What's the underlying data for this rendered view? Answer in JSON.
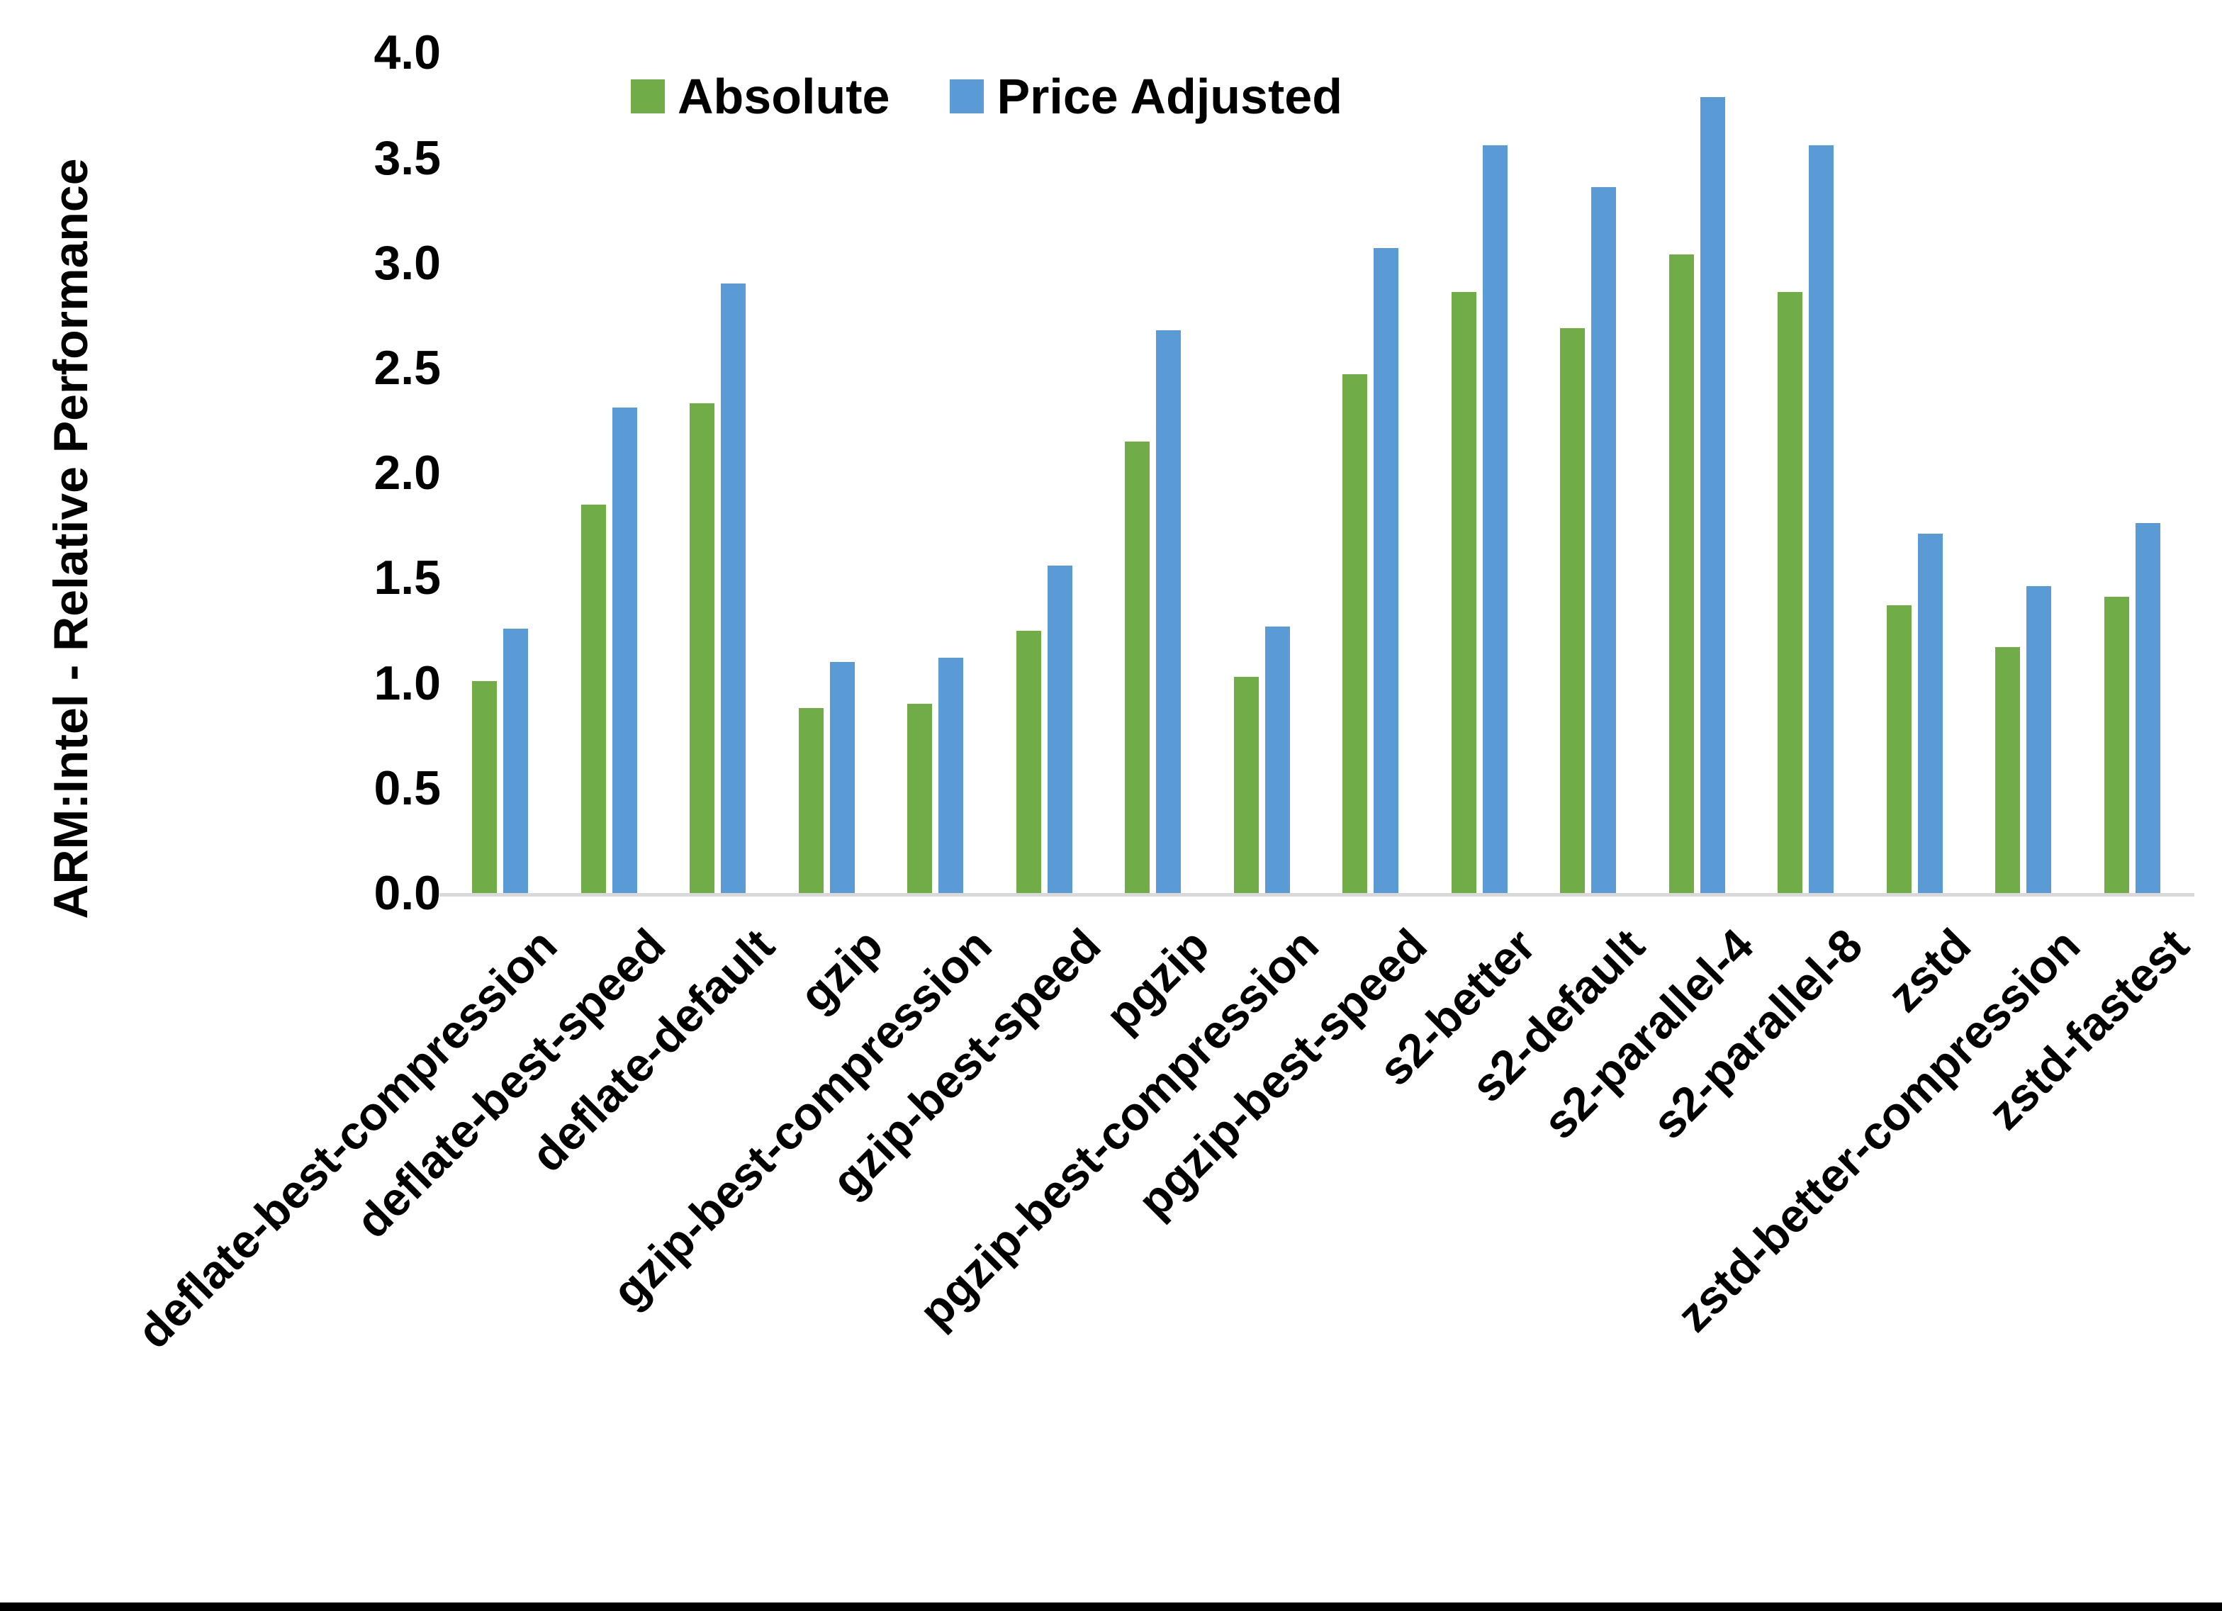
{
  "chart_data": {
    "type": "bar",
    "title": "",
    "xlabel": "",
    "ylabel": "ARM:Intel - Relative Performance",
    "ylim": [
      0.0,
      4.0
    ],
    "ytick_step": 0.5,
    "y_ticks": [
      "0.0",
      "0.5",
      "1.0",
      "1.5",
      "2.0",
      "2.5",
      "3.0",
      "3.5",
      "4.0"
    ],
    "grid": "off",
    "legend_position": "top",
    "categories": [
      "deflate-best-compression",
      "deflate-best-speed",
      "deflate-default",
      "gzip",
      "gzip-best-compression",
      "gzip-best-speed",
      "pgzip",
      "pgzip-best-compression",
      "pgzip-best-speed",
      "s2-better",
      "s2-default",
      "s2-parallel-4",
      "s2-parallel-8",
      "zstd",
      "zstd-better-compression",
      "zstd-fastest"
    ],
    "series": [
      {
        "name": "Absolute",
        "color": "#70AD47",
        "values": [
          1.01,
          1.85,
          2.33,
          0.88,
          0.9,
          1.25,
          2.15,
          1.03,
          2.47,
          2.86,
          2.69,
          3.04,
          2.86,
          1.37,
          1.17,
          1.41
        ]
      },
      {
        "name": "Price Adjusted",
        "color": "#5B9BD5",
        "values": [
          1.26,
          2.31,
          2.9,
          1.1,
          1.12,
          1.56,
          2.68,
          1.27,
          3.07,
          3.56,
          3.36,
          3.79,
          3.56,
          1.71,
          1.46,
          1.76
        ]
      }
    ],
    "colors": {
      "background": "#ffffff",
      "text": "#000000",
      "axis_line": "#d9d9d9",
      "footer_bar": "#000000"
    }
  }
}
